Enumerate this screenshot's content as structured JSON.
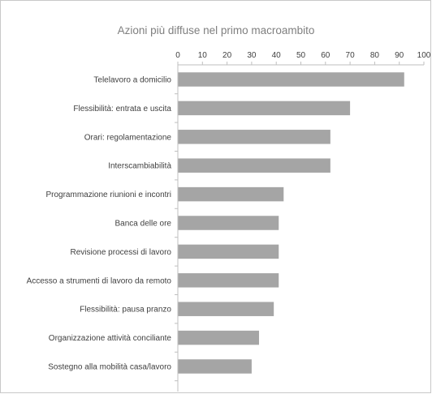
{
  "chart_data": {
    "type": "bar",
    "orientation": "horizontal",
    "title": "Azioni più diffuse nel primo macroambito",
    "xlabel": "",
    "ylabel": "",
    "xlim": [
      0,
      100
    ],
    "ticks": [
      0,
      10,
      20,
      30,
      40,
      50,
      60,
      70,
      80,
      90,
      100
    ],
    "tick_position": "top",
    "grid": false,
    "legend": "none",
    "bar_color": "#a5a5a5",
    "categories": [
      "Telelavoro a domicilio",
      "Flessibilità: entrata e uscita",
      "Orari: regolamentazione",
      "Interscambiabilità",
      "Programmazione riunioni e incontri",
      "Banca delle ore",
      "Revisione processi di lavoro",
      "Accesso a strumenti di lavoro da remoto",
      "Flessibilità: pausa pranzo",
      "Organizzazione attività conciliante",
      "Sostegno alla mobilità casa/lavoro"
    ],
    "values": [
      92,
      70,
      62,
      62,
      43,
      41,
      41,
      41,
      39,
      33,
      30
    ]
  }
}
